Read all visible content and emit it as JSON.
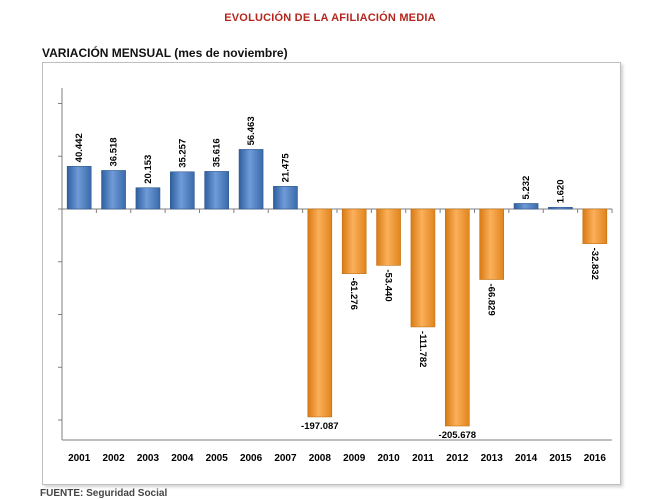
{
  "header": {
    "title": "EVOLUCIÓN DE LA AFILIACIÓN MEDIA",
    "subtitle": "VARIACIÓN MENSUAL (mes de noviembre)"
  },
  "colors": {
    "title": "#b5261e",
    "positive_bar": "#4a7ebb",
    "negative_bar": "#f0962e"
  },
  "chart_data": {
    "type": "bar",
    "title": "VARIACIÓN MENSUAL (mes de noviembre)",
    "xlabel": "",
    "ylabel": "",
    "categories": [
      "2001",
      "2002",
      "2003",
      "2004",
      "2005",
      "2006",
      "2007",
      "2008",
      "2009",
      "2010",
      "2011",
      "2012",
      "2013",
      "2014",
      "2015",
      "2016"
    ],
    "values": [
      40442,
      36518,
      20153,
      35257,
      35616,
      56463,
      21475,
      -197087,
      -61276,
      -53440,
      -111782,
      -205678,
      -66829,
      5232,
      1620,
      -32832
    ],
    "labels": [
      "40.442",
      "36.518",
      "20.153",
      "35.257",
      "35.616",
      "56.463",
      "21.475",
      "-197.087",
      "-61.276",
      "-53.440",
      "-111.782",
      "-205.678",
      "-66.829",
      "5.232",
      "1.620",
      "-32.832"
    ],
    "ylim": [
      -230000,
      120000
    ],
    "grid": false,
    "legend": "none"
  },
  "footer": {
    "partial_text": "FUENTE: Seguridad Social"
  }
}
